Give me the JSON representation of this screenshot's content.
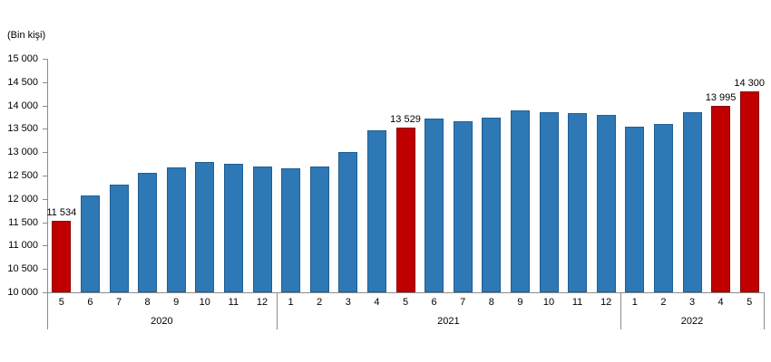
{
  "chart": {
    "colors": {
      "bar_default": "#2E79B5",
      "bar_default_border": "#1E5E94",
      "bar_highlight": "#C00000",
      "bar_highlight_border": "#8E0000",
      "axis": "#8C8C8C",
      "text": "#000000",
      "background": "#FFFFFF"
    }
  },
  "chart_data": {
    "type": "bar",
    "title": "",
    "ylabel": "(Bin kişi)",
    "xlabel": "",
    "ylim": [
      10000,
      15000
    ],
    "ytick_step": 500,
    "yticks": [
      "15 000",
      "14 500",
      "14 000",
      "13 500",
      "13 000",
      "12 500",
      "12 000",
      "11 500",
      "11 000",
      "10 500",
      "10 000"
    ],
    "grid": false,
    "legend": null,
    "groups": [
      {
        "year": "2020",
        "bars": [
          {
            "month": "5",
            "value": 11534,
            "highlight": true,
            "data_label": "11 534"
          },
          {
            "month": "6",
            "value": 12080,
            "highlight": false
          },
          {
            "month": "7",
            "value": 12310,
            "highlight": false
          },
          {
            "month": "8",
            "value": 12550,
            "highlight": false
          },
          {
            "month": "9",
            "value": 12680,
            "highlight": false
          },
          {
            "month": "10",
            "value": 12800,
            "highlight": false
          },
          {
            "month": "11",
            "value": 12750,
            "highlight": false
          },
          {
            "month": "12",
            "value": 12700,
            "highlight": false
          }
        ]
      },
      {
        "year": "2021",
        "bars": [
          {
            "month": "1",
            "value": 12660,
            "highlight": false
          },
          {
            "month": "2",
            "value": 12700,
            "highlight": false
          },
          {
            "month": "3",
            "value": 13000,
            "highlight": false
          },
          {
            "month": "4",
            "value": 13460,
            "highlight": false
          },
          {
            "month": "5",
            "value": 13529,
            "highlight": true,
            "data_label": "13 529"
          },
          {
            "month": "6",
            "value": 13720,
            "highlight": false
          },
          {
            "month": "7",
            "value": 13660,
            "highlight": false
          },
          {
            "month": "8",
            "value": 13740,
            "highlight": false
          },
          {
            "month": "9",
            "value": 13890,
            "highlight": false
          },
          {
            "month": "10",
            "value": 13850,
            "highlight": false
          },
          {
            "month": "11",
            "value": 13830,
            "highlight": false
          },
          {
            "month": "12",
            "value": 13790,
            "highlight": false
          }
        ]
      },
      {
        "year": "2022",
        "bars": [
          {
            "month": "1",
            "value": 13550,
            "highlight": false
          },
          {
            "month": "2",
            "value": 13600,
            "highlight": false
          },
          {
            "month": "3",
            "value": 13850,
            "highlight": false
          },
          {
            "month": "4",
            "value": 13995,
            "highlight": true,
            "data_label": "13 995"
          },
          {
            "month": "5",
            "value": 14300,
            "highlight": true,
            "data_label": "14 300"
          }
        ]
      }
    ]
  }
}
